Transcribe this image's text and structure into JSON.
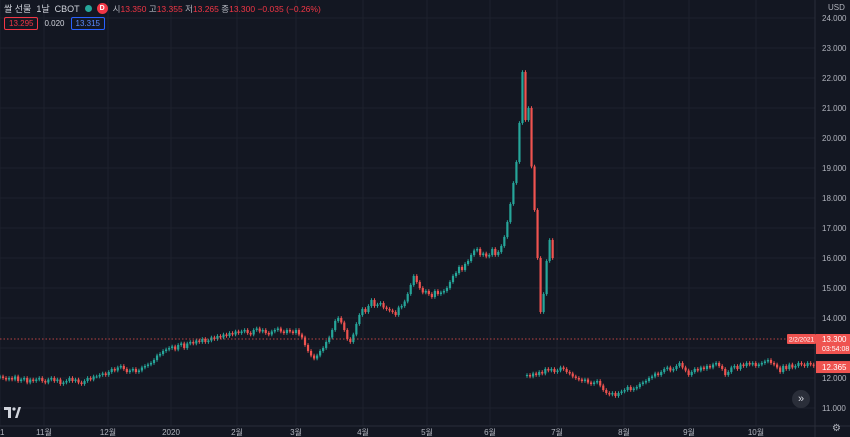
{
  "header": {
    "symbol_name": "쌀 선물",
    "interval": "1날",
    "exchange": "CBOT",
    "status_badge": "D",
    "ohlc": {
      "open_label": "시",
      "open": "13.350",
      "high_label": "고",
      "high": "13.355",
      "low_label": "저",
      "low": "13.265",
      "close_label": "종",
      "close": "13.300",
      "change": "−0.035 (−0.26%)"
    },
    "sell_price": "13.295",
    "spread": "0.020",
    "buy_price": "13.315"
  },
  "price_axis": {
    "currency": "USD",
    "ticks": [
      "24.000",
      "23.000",
      "22.000",
      "21.000",
      "20.000",
      "19.000",
      "18.000",
      "17.000",
      "16.000",
      "15.000",
      "14.000",
      "13.000",
      "12.000",
      "11.000"
    ],
    "last_price_label": {
      "date": "2/2/2021",
      "price": "13.300",
      "countdown": "03:54:08"
    },
    "secondary_label": "12.365"
  },
  "time_axis": {
    "labels": [
      "1",
      "11월",
      "12월",
      "2020",
      "2월",
      "3월",
      "4월",
      "5월",
      "6월",
      "7월",
      "8월",
      "9월",
      "10월"
    ]
  },
  "colors": {
    "up": "#26a69a",
    "down": "#ef5350",
    "background": "#131722",
    "grid": "#1e222d"
  },
  "chart_data": {
    "type": "candlestick",
    "ylim": [
      10.4,
      24.6
    ],
    "y_ticks": [
      11,
      12,
      13,
      14,
      15,
      16,
      17,
      18,
      19,
      20,
      21,
      22,
      23,
      24
    ],
    "x_labels": [
      "1",
      "11월",
      "12월",
      "2020",
      "2월",
      "3월",
      "4월",
      "5월",
      "6월",
      "7월",
      "8월",
      "9월",
      "10월"
    ],
    "current_price_line": 13.3,
    "segments": [
      {
        "name": "",
        "closes": [
          12.05,
          12.0,
          11.95,
          12.0,
          11.95,
          12.05,
          11.9,
          11.95,
          12.0,
          11.85,
          11.95,
          11.9,
          11.95,
          12.0,
          11.9,
          11.85,
          11.95,
          12.0,
          11.9,
          11.95,
          11.8,
          11.85,
          11.9,
          12.0,
          11.9,
          11.95,
          11.85,
          11.8,
          11.9,
          12.0,
          11.95,
          12.05,
          12.05,
          12.1,
          12.15,
          12.1,
          12.2,
          12.3,
          12.25,
          12.35,
          12.4,
          12.3,
          12.2,
          12.25,
          12.3,
          12.2,
          12.25,
          12.35,
          12.4,
          12.45,
          12.5,
          12.6,
          12.75,
          12.8,
          12.9,
          12.95,
          13.0,
          13.05,
          12.95,
          13.1,
          13.15,
          13.0,
          13.15,
          13.2,
          13.15,
          13.25,
          13.2,
          13.3,
          13.2,
          13.25,
          13.35,
          13.3,
          13.4,
          13.35,
          13.45,
          13.4,
          13.5,
          13.45,
          13.55,
          13.5,
          13.55,
          13.6,
          13.5,
          13.45,
          13.6,
          13.65,
          13.55,
          13.6,
          13.5,
          13.45,
          13.55,
          13.6,
          13.65,
          13.55,
          13.5,
          13.6,
          13.55,
          13.5,
          13.6,
          13.45,
          13.35,
          13.1,
          12.9,
          12.75,
          12.65,
          12.75,
          12.9,
          13.0,
          13.2,
          13.35,
          13.6,
          13.9,
          14.0,
          13.85,
          13.6,
          13.3,
          13.2,
          13.45,
          13.8,
          14.1,
          14.3,
          14.2,
          14.4,
          14.6,
          14.4,
          14.45,
          14.5,
          14.35,
          14.3,
          14.25,
          14.2,
          14.1,
          14.35,
          14.4,
          14.55,
          14.8,
          15.1,
          15.4,
          15.2,
          15.0,
          14.85,
          14.9,
          14.8,
          14.7,
          14.9,
          14.8,
          14.85,
          14.9,
          15.0,
          15.2,
          15.4,
          15.5,
          15.7,
          15.6,
          15.8,
          15.9,
          16.1,
          16.25,
          16.3,
          16.1,
          16.15,
          16.05,
          16.1,
          16.3,
          16.1,
          16.2,
          16.4,
          16.7,
          17.2,
          17.8,
          18.5,
          19.2,
          20.5,
          22.2,
          20.6,
          21.0,
          19.05,
          17.6,
          16.0,
          14.2,
          14.8,
          15.9,
          16.6,
          16.0
        ]
      },
      {
        "name": "",
        "closes": [
          12.1,
          12.05,
          12.15,
          12.1,
          12.2,
          12.15,
          12.3,
          12.25,
          12.3,
          12.2,
          12.25,
          12.35,
          12.3,
          12.2,
          12.15,
          12.05,
          12.0,
          11.95,
          11.9,
          11.95,
          11.85,
          11.8,
          11.85,
          11.9,
          11.75,
          11.6,
          11.5,
          11.45,
          11.5,
          11.4,
          11.5,
          11.55,
          11.6,
          11.7,
          11.6,
          11.65,
          11.7,
          11.8,
          11.85,
          11.9,
          12.0,
          12.05,
          12.15,
          12.1,
          12.2,
          12.3,
          12.35,
          12.25,
          12.3,
          12.4,
          12.5,
          12.35,
          12.25,
          12.1,
          12.2,
          12.3,
          12.25,
          12.35,
          12.3,
          12.4,
          12.35,
          12.45,
          12.5,
          12.4,
          12.3,
          12.1,
          12.2,
          12.35,
          12.4,
          12.3,
          12.45,
          12.4,
          12.5,
          12.45,
          12.5,
          12.4,
          12.45,
          12.5,
          12.55,
          12.6,
          12.5,
          12.45,
          12.35,
          12.2,
          12.4,
          12.3,
          12.45,
          12.35,
          12.4,
          12.5,
          12.45,
          12.4,
          12.5,
          12.45,
          12.4,
          12.4,
          12.35,
          12.4,
          12.45,
          12.4,
          12.35,
          12.37
        ]
      }
    ]
  }
}
